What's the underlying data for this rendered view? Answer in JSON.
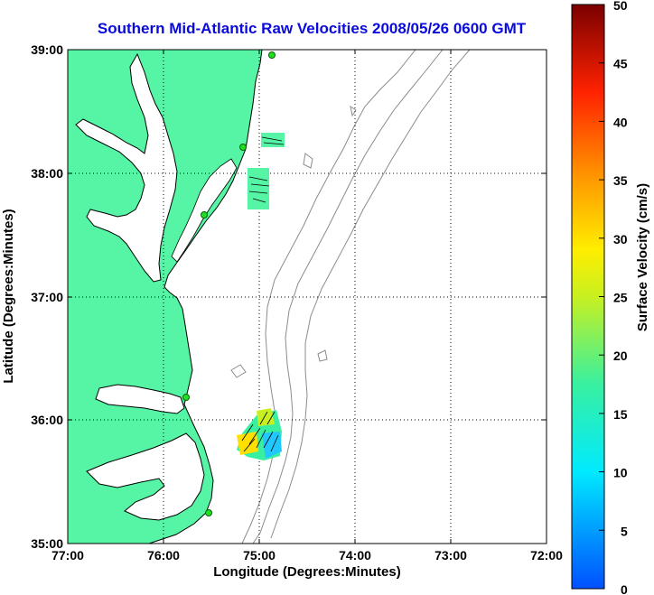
{
  "title": "Southern Mid-Atlantic Raw Velocities 2008/05/26 0600 GMT",
  "x_axis": {
    "label": "Longitude (Degrees:Minutes)",
    "ticks": [
      "77:00",
      "76:00",
      "75:00",
      "74:00",
      "73:00",
      "72:00"
    ]
  },
  "y_axis": {
    "label": "Latitude (Degrees:Minutes)",
    "ticks": [
      "39:00",
      "38:00",
      "37:00",
      "36:00",
      "35:00"
    ]
  },
  "colorbar": {
    "label": "Surface Velocity (cm/s)",
    "ticks": [
      "50",
      "45",
      "40",
      "35",
      "30",
      "25",
      "20",
      "15",
      "10",
      "5",
      "0"
    ],
    "range": [
      0,
      50
    ]
  },
  "map": {
    "lon_range": [
      -77,
      -72
    ],
    "lat_range": [
      35,
      39
    ],
    "land_color": "#55f5a5",
    "coast_color": "#000000",
    "isobath_color": "#8c8c8c",
    "grid": "dotted",
    "station_color": "#22dd22"
  }
}
